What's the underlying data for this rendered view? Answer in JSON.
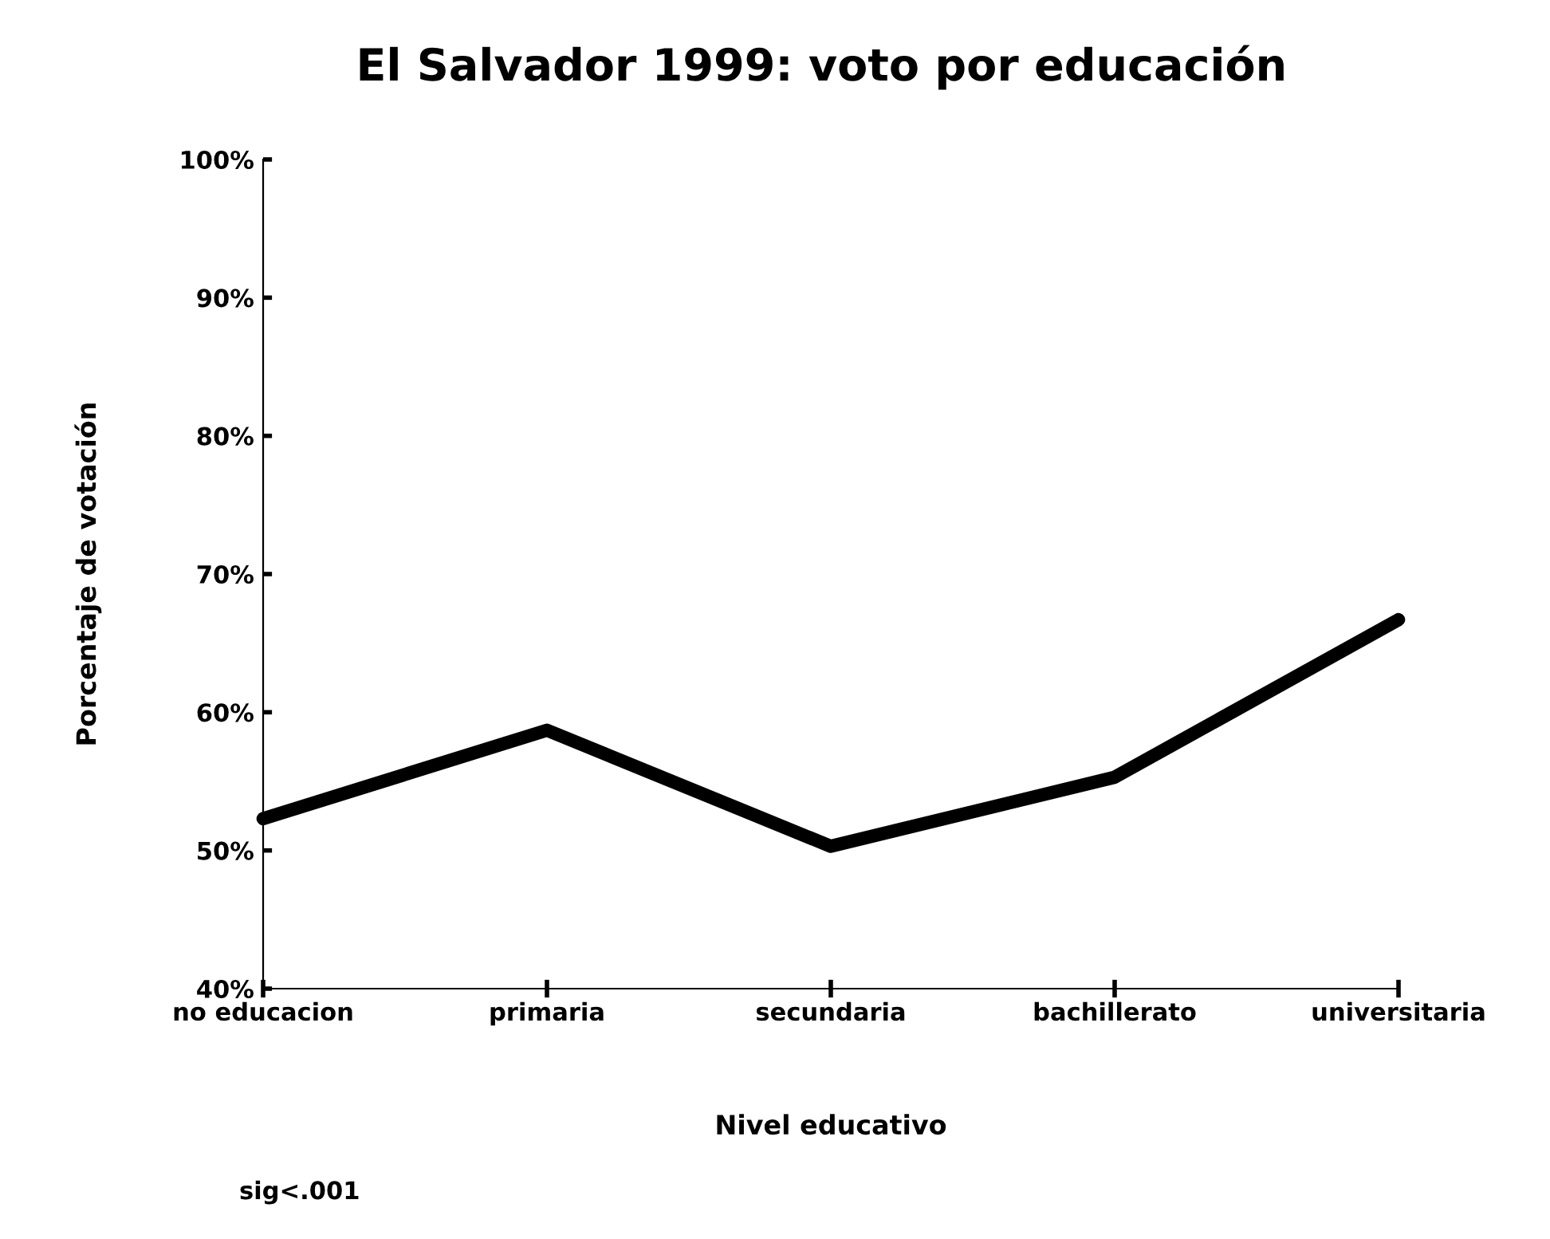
{
  "chart_data": {
    "type": "line",
    "title": "El Salvador 1999: voto por educación",
    "xlabel": "Nivel educativo",
    "ylabel": "Porcentaje de votación",
    "categories": [
      "no educacion",
      "primaria",
      "secundaria",
      "bachillerato",
      "universitaria"
    ],
    "series": [
      {
        "color": "#000000",
        "values": [
          52.3,
          58.7,
          50.3,
          55.3,
          66.7
        ]
      }
    ],
    "ylim": [
      40,
      100
    ],
    "yticks": [
      {
        "value": 40,
        "label": "40%"
      },
      {
        "value": 50,
        "label": "50%"
      },
      {
        "value": 60,
        "label": "60%"
      },
      {
        "value": 70,
        "label": "70%"
      },
      {
        "value": 80,
        "label": "80%"
      },
      {
        "value": 90,
        "label": "90%"
      },
      {
        "value": 100,
        "label": "100%"
      }
    ],
    "grid": false,
    "marker": "none",
    "line_style": "solid",
    "annotations": [
      "sig<.001"
    ]
  }
}
